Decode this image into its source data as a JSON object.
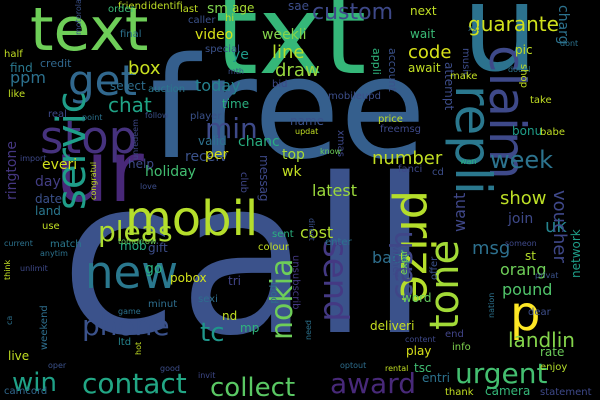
{
  "background": "#000000",
  "words": [
    {
      "text": "call",
      "color": "#3b528b"
    },
    {
      "text": "free",
      "color": "#355f8d"
    },
    {
      "text": "txt",
      "color": "#35b779"
    },
    {
      "text": "u",
      "color": "#2c728e"
    },
    {
      "text": "text",
      "color": "#6ece58"
    },
    {
      "text": "ur",
      "color": "#482878"
    },
    {
      "text": "stop",
      "color": "#46327e"
    },
    {
      "text": "mobil",
      "color": "#b5de2b"
    },
    {
      "text": "claim",
      "color": "#3e4989"
    },
    {
      "text": "repli",
      "color": "#2a788e"
    },
    {
      "text": "prize",
      "color": "#b5de2b"
    },
    {
      "text": "get",
      "color": "#31688e"
    },
    {
      "text": "new",
      "color": "#2a788e"
    },
    {
      "text": "servic",
      "color": "#1f9e89"
    },
    {
      "text": "send",
      "color": "#443983"
    },
    {
      "text": "nokia",
      "color": "#6ece58"
    },
    {
      "text": "tone",
      "color": "#a2da37"
    },
    {
      "text": "cash",
      "color": "#404688"
    },
    {
      "text": "p",
      "color": "#fde725"
    },
    {
      "text": "pleas",
      "color": "#addc30"
    },
    {
      "text": "phone",
      "color": "#3b528b"
    },
    {
      "text": "contact",
      "color": "#22a785"
    },
    {
      "text": "win",
      "color": "#1fa187"
    },
    {
      "text": "award",
      "color": "#482979"
    },
    {
      "text": "urgent",
      "color": "#44bf70"
    },
    {
      "text": "collect",
      "color": "#5ac864"
    },
    {
      "text": "week",
      "color": "#2c738e"
    },
    {
      "text": "min",
      "color": "#3e4a89"
    },
    {
      "text": "custom",
      "color": "#3e4989"
    },
    {
      "text": "guarante",
      "color": "#d0e11c"
    },
    {
      "text": "chat",
      "color": "#20a386"
    },
    {
      "text": "tc",
      "color": "#1f968b"
    },
    {
      "text": "landlin",
      "color": "#84d44b"
    },
    {
      "text": "box",
      "color": "#c8e020"
    },
    {
      "text": "code",
      "color": "#d8e219"
    },
    {
      "text": "number",
      "color": "#c2df23"
    },
    {
      "text": "show",
      "color": "#bddf26"
    },
    {
      "text": "uk",
      "color": "#25848e"
    },
    {
      "text": "voucher",
      "color": "#3f4889"
    },
    {
      "text": "msg",
      "color": "#2d708e"
    },
    {
      "text": "line",
      "color": "#b5de2b"
    },
    {
      "text": "draw",
      "color": "#98d83e"
    },
    {
      "text": "today",
      "color": "#26818e"
    },
    {
      "text": "latest",
      "color": "#9bd93c"
    },
    {
      "text": "want",
      "color": "#3f4788"
    },
    {
      "text": "cost",
      "color": "#b0dd2f"
    },
    {
      "text": "orang",
      "color": "#6ece58"
    },
    {
      "text": "pound",
      "color": "#50c46a"
    },
    {
      "text": "back",
      "color": "#2e6f8e"
    },
    {
      "text": "ppm",
      "color": "#2c718e"
    },
    {
      "text": "find",
      "color": "#2a788e"
    },
    {
      "text": "ringtone",
      "color": "#453781"
    },
    {
      "text": "everi",
      "color": "#d2e21b"
    },
    {
      "text": "day",
      "color": "#433e85"
    },
    {
      "text": "date",
      "color": "#3b518b"
    },
    {
      "text": "land",
      "color": "#2a778e"
    },
    {
      "text": "wait",
      "color": "#3aba76"
    },
    {
      "text": "await",
      "color": "#c2df23"
    },
    {
      "text": "attempt",
      "color": "#3d4d8a"
    },
    {
      "text": "account",
      "color": "#3b528b"
    },
    {
      "text": "appli",
      "color": "#2fb47c"
    },
    {
      "text": "next",
      "color": "#c0df25"
    },
    {
      "text": "video",
      "color": "#d8e219"
    },
    {
      "text": "weekli",
      "color": "#84d44b"
    },
    {
      "text": "ye",
      "color": "#1f9a8a"
    },
    {
      "text": "select",
      "color": "#2e6e8e"
    },
    {
      "text": "credit",
      "color": "#31688e"
    },
    {
      "text": "holiday",
      "color": "#42be71"
    },
    {
      "text": "receiv",
      "color": "#3b528b"
    },
    {
      "text": "chanc",
      "color": "#28ae80"
    },
    {
      "text": "valid",
      "color": "#2d718e"
    },
    {
      "text": "per",
      "color": "#d8e219"
    },
    {
      "text": "help",
      "color": "#3e4989"
    },
    {
      "text": "mob",
      "color": "#25ab82"
    },
    {
      "text": "go",
      "color": "#2ab07f"
    },
    {
      "text": "pobox",
      "color": "#d2e21b"
    },
    {
      "text": "gift",
      "color": "#3d4e8a"
    },
    {
      "text": "tri",
      "color": "#414487"
    },
    {
      "text": "nd",
      "color": "#c2df23"
    },
    {
      "text": "mp",
      "color": "#2fb47c"
    },
    {
      "text": "club",
      "color": "#3f4788"
    },
    {
      "text": "name",
      "color": "#3b528b"
    },
    {
      "text": "top",
      "color": "#a8db34"
    },
    {
      "text": "wk",
      "color": "#c2df23"
    },
    {
      "text": "messag",
      "color": "#3e4989"
    },
    {
      "text": "bonu",
      "color": "#1f9e89"
    },
    {
      "text": "entri",
      "color": "#2c728e"
    },
    {
      "text": "tsc",
      "color": "#40bd72"
    },
    {
      "text": "play",
      "color": "#d8e219"
    },
    {
      "text": "deliveri",
      "color": "#c8e020"
    },
    {
      "text": "word",
      "color": "#65cb5e"
    },
    {
      "text": "rate",
      "color": "#6ccd5a"
    },
    {
      "text": "network",
      "color": "#1f9e89"
    },
    {
      "text": "sm",
      "color": "#7fd34e"
    },
    {
      "text": "age",
      "color": "#a8db34"
    },
    {
      "text": "sae",
      "color": "#3d4e8a"
    },
    {
      "text": "friend",
      "color": "#c2df23"
    },
    {
      "text": "order",
      "color": "#3aba76"
    },
    {
      "text": "identifi",
      "color": "#bddf26"
    },
    {
      "text": "final",
      "color": "#2c728e"
    },
    {
      "text": "auction",
      "color": "#2a788e"
    },
    {
      "text": "special",
      "color": "#3b528b"
    },
    {
      "text": "time",
      "color": "#2ab07f"
    },
    {
      "text": "unsubscrib",
      "color": "#443983"
    },
    {
      "text": "live",
      "color": "#c2df23"
    },
    {
      "text": "weekend",
      "color": "#2e6e8e"
    },
    {
      "text": "camcord",
      "color": "#31688e"
    },
    {
      "text": "ltd",
      "color": "#25848e"
    },
    {
      "text": "statement",
      "color": "#3e4989"
    },
    {
      "text": "thank",
      "color": "#c2df23"
    },
    {
      "text": "camera",
      "color": "#35b779"
    },
    {
      "text": "enjoy",
      "color": "#b5de2b"
    },
    {
      "text": "dear",
      "color": "#3d4e8a"
    },
    {
      "text": "info",
      "color": "#7fd34e"
    },
    {
      "text": "end",
      "color": "#414487"
    },
    {
      "text": "offer",
      "color": "#3b528b"
    },
    {
      "text": "expir",
      "color": "#6ccd5a"
    },
    {
      "text": "join",
      "color": "#3e4989"
    },
    {
      "text": "st",
      "color": "#b5de2b"
    },
    {
      "text": "music",
      "color": "#3d4d8a"
    },
    {
      "text": "pic",
      "color": "#c2df23"
    },
    {
      "text": "charg",
      "color": "#2c728e"
    },
    {
      "text": "hi",
      "color": "#c2df23"
    },
    {
      "text": "caller",
      "color": "#3b528b"
    },
    {
      "text": "last",
      "color": "#c2df23"
    },
    {
      "text": "sexi",
      "color": "#2e6e8e"
    },
    {
      "text": "xmas",
      "color": "#3e4989"
    },
    {
      "text": "player",
      "color": "#3b528b"
    },
    {
      "text": "enter",
      "color": "#2c718e"
    },
    {
      "text": "colour",
      "color": "#c2df23"
    },
    {
      "text": "sent",
      "color": "#2ab07f"
    },
    {
      "text": "winner",
      "color": "#3e4989"
    },
    {
      "text": "ipod",
      "color": "#2e6e8e"
    },
    {
      "text": "match",
      "color": "#2a788e"
    },
    {
      "text": "tomorrow",
      "color": "#6ccd5a"
    },
    {
      "text": "direct",
      "color": "#3b528b"
    },
    {
      "text": "bid",
      "color": "#3e4989"
    },
    {
      "text": "half",
      "color": "#c2df23"
    },
    {
      "text": "like",
      "color": "#c2df23"
    },
    {
      "text": "real",
      "color": "#3e4989"
    },
    {
      "text": "point",
      "color": "#2c728e"
    },
    {
      "text": "follow",
      "color": "#3b528b"
    },
    {
      "text": "mobileupd",
      "color": "#3d4e8a"
    },
    {
      "text": "updat",
      "color": "#c2df23"
    },
    {
      "text": "make",
      "color": "#c2df23"
    },
    {
      "text": "doubl",
      "color": "#2c728e"
    },
    {
      "text": "shop",
      "color": "#c2df23"
    },
    {
      "text": "dont",
      "color": "#2c728e"
    },
    {
      "text": "freemsg",
      "color": "#3e4989"
    },
    {
      "text": "cd",
      "color": "#3d4e8a"
    },
    {
      "text": "wan",
      "color": "#2ab07f"
    },
    {
      "text": "babe",
      "color": "#c2df23"
    },
    {
      "text": "someon",
      "color": "#3e4989"
    },
    {
      "text": "use",
      "color": "#c2df23"
    },
    {
      "text": "ca",
      "color": "#2c718e"
    },
    {
      "text": "unlimit",
      "color": "#3e4989"
    },
    {
      "text": "anytim",
      "color": "#2c728e"
    },
    {
      "text": "oper",
      "color": "#3b528b"
    },
    {
      "text": "invit",
      "color": "#3e4989"
    },
    {
      "text": "good",
      "color": "#3d4e8a"
    },
    {
      "text": "optout",
      "color": "#2e6e8e"
    },
    {
      "text": "rental",
      "color": "#c2df23"
    },
    {
      "text": "need",
      "color": "#2c728e"
    },
    {
      "text": "content",
      "color": "#3e4989"
    },
    {
      "text": "nation",
      "color": "#2c728e"
    },
    {
      "text": "privat",
      "color": "#3b528b"
    },
    {
      "text": "minut",
      "color": "#2e6e8e"
    },
    {
      "text": "hot",
      "color": "#c2df23"
    },
    {
      "text": "game",
      "color": "#2c728e"
    },
    {
      "text": "unredeem",
      "color": "#3e4989"
    },
    {
      "text": "motorola",
      "color": "#3b528b"
    },
    {
      "text": "congratul",
      "color": "#c2df23"
    },
    {
      "text": "import",
      "color": "#3e4989"
    },
    {
      "text": "love",
      "color": "#3d4e8a"
    },
    {
      "text": "think",
      "color": "#c2df23"
    },
    {
      "text": "current",
      "color": "#2c728e"
    },
    {
      "text": "mth",
      "color": "#3b528b"
    },
    {
      "text": "fanci",
      "color": "#3e4989"
    },
    {
      "text": "price",
      "color": "#c2df23"
    },
    {
      "text": "take",
      "color": "#c2df23"
    },
    {
      "text": "know",
      "color": "#6ccd5a"
    },
    {
      "text": "xxx",
      "color": "#2e6e8e"
    },
    {
      "text": "dog",
      "color": "#c2df23"
    }
  ]
}
